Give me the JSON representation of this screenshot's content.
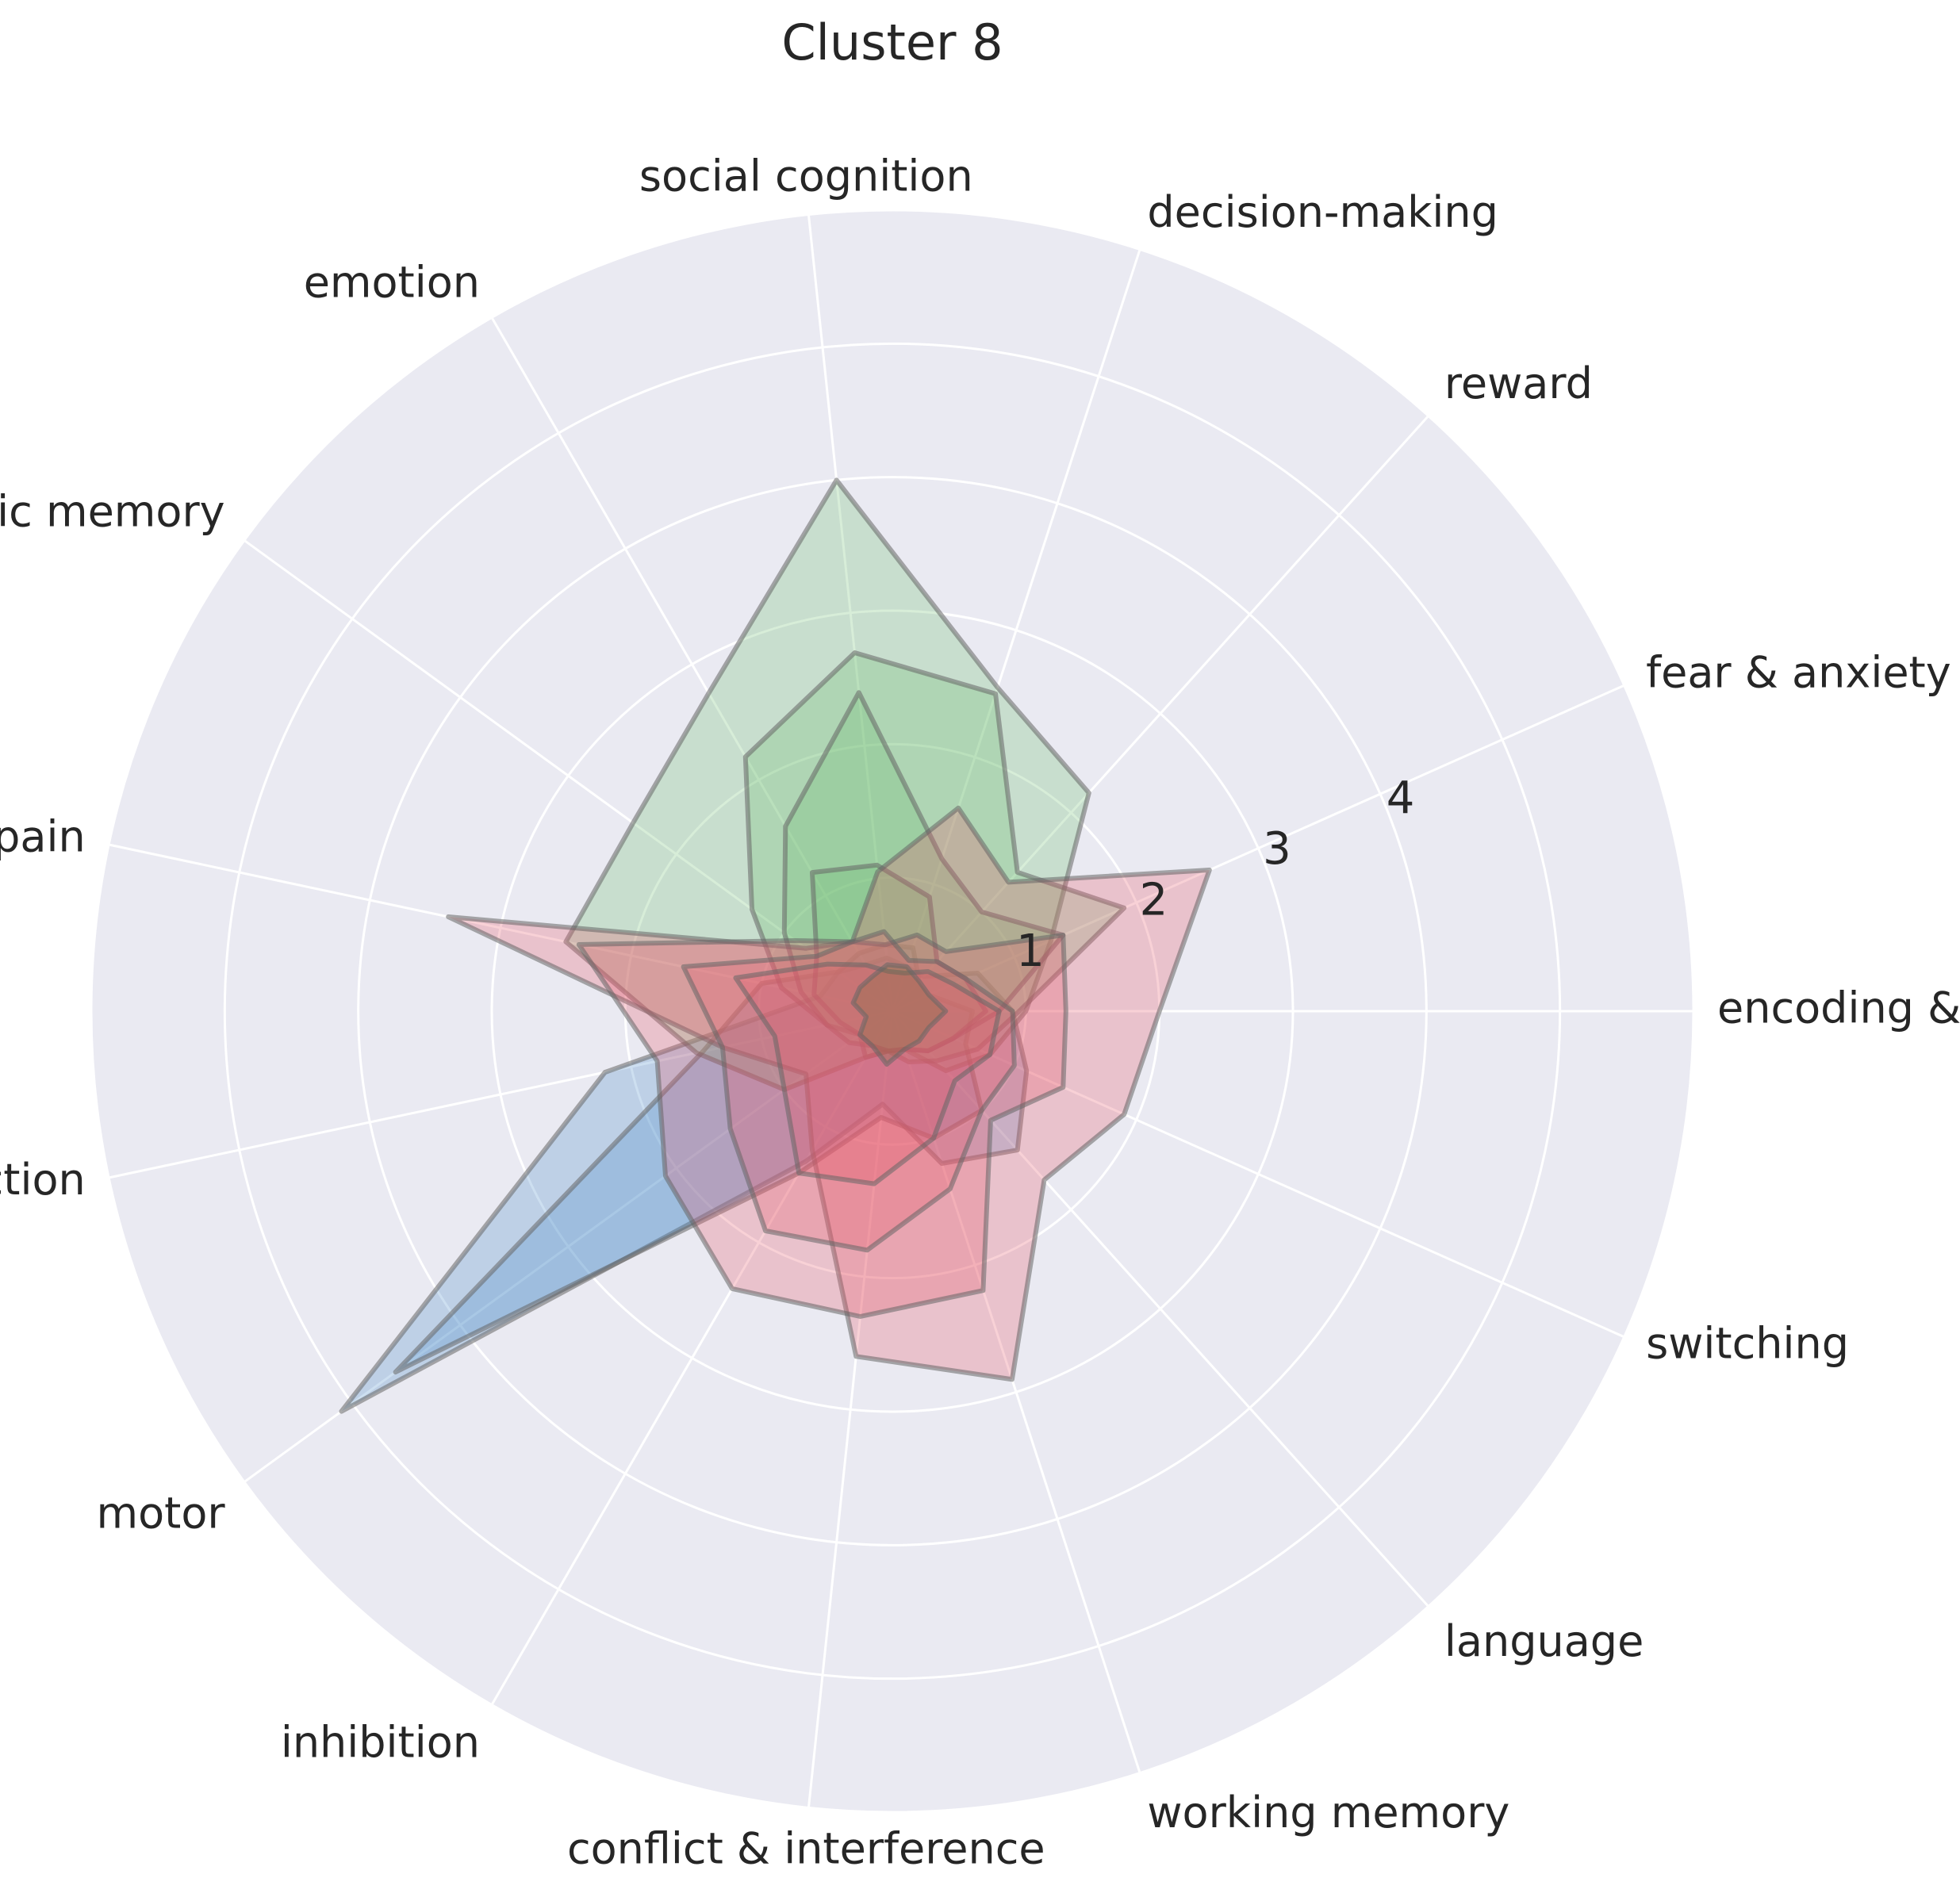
{
  "chart_data": {
    "type": "radar",
    "title": "Cluster 8",
    "categories": [
      "encoding & retrieval",
      "fear & anxiety",
      "reward",
      "decision-making",
      "social cognition",
      "emotion",
      "episodic memory",
      "pain",
      "action",
      "motor",
      "inhibition",
      "conflict & interference",
      "working memory",
      "language",
      "switching"
    ],
    "r_ticks": [
      "1",
      "2",
      "3",
      "4"
    ],
    "r_max": 6,
    "grid": true,
    "background": "#EAEAF2",
    "series": [
      {
        "color": "#4C8BC8",
        "values": [
          0.9,
          0.7,
          0.35,
          0.35,
          0.4,
          0.4,
          0.5,
          0.55,
          2.2,
          5.1,
          1.3,
          0.7,
          1.2,
          1.4,
          1.1
        ]
      },
      {
        "color": "#4C8BC8",
        "values": [
          0.6,
          0.3,
          0.3,
          0.5,
          0.5,
          0.5,
          0.5,
          1.0,
          1.45,
          4.6,
          1.4,
          0.8,
          1.0,
          1.0,
          0.6
        ]
      },
      {
        "color": "#6FBF73",
        "values": [
          1.0,
          1.3,
          2.2,
          2.55,
          4.0,
          2.75,
          2.4,
          2.5,
          1.5,
          1.0,
          0.4,
          0.3,
          0.3,
          0.6,
          0.8
        ]
      },
      {
        "color": "#6FBF73",
        "values": [
          0.95,
          1.9,
          1.4,
          2.5,
          2.7,
          2.2,
          1.3,
          0.85,
          0.5,
          0.3,
          0.4,
          0.3,
          0.4,
          0.5,
          0.7
        ]
      },
      {
        "color": "#6FBF73",
        "values": [
          0.8,
          1.4,
          1.0,
          1.2,
          2.4,
          1.6,
          1.0,
          0.7,
          0.5,
          0.4,
          0.3,
          0.3,
          0.3,
          0.4,
          0.5
        ]
      },
      {
        "color": "#6FBF73",
        "values": [
          0.7,
          0.6,
          0.5,
          0.9,
          1.1,
          1.2,
          0.7,
          0.6,
          0.4,
          0.3,
          0.3,
          0.3,
          0.3,
          0.4,
          0.5
        ]
      },
      {
        "color": "#E65A6A",
        "values": [
          2.0,
          2.6,
          1.3,
          1.6,
          1.05,
          0.6,
          0.8,
          3.4,
          1.3,
          0.8,
          1.2,
          2.6,
          2.9,
          1.7,
          1.9
        ]
      },
      {
        "color": "#E65A6A",
        "values": [
          1.3,
          1.4,
          0.6,
          0.6,
          0.5,
          0.6,
          0.9,
          2.4,
          1.8,
          2.1,
          2.4,
          2.3,
          2.2,
          1.1,
          1.4
        ]
      },
      {
        "color": "#E65A6A",
        "values": [
          0.9,
          0.6,
          0.5,
          0.4,
          0.6,
          0.6,
          0.7,
          1.6,
          1.3,
          1.5,
          1.9,
          1.8,
          1.4,
          1.0,
          1.0
        ]
      },
      {
        "color": "#E65A6A",
        "values": [
          0.8,
          0.5,
          0.4,
          0.3,
          0.3,
          0.4,
          0.6,
          1.2,
          0.9,
          1.0,
          1.4,
          1.3,
          1.0,
          0.7,
          0.8
        ]
      },
      {
        "color": "#7A6A3A",
        "values": [
          0.4,
          0.3,
          0.3,
          0.35,
          0.35,
          0.3,
          0.3,
          0.3,
          0.2,
          0.3,
          0.3,
          0.4,
          0.3,
          0.3,
          0.3
        ]
      }
    ]
  }
}
